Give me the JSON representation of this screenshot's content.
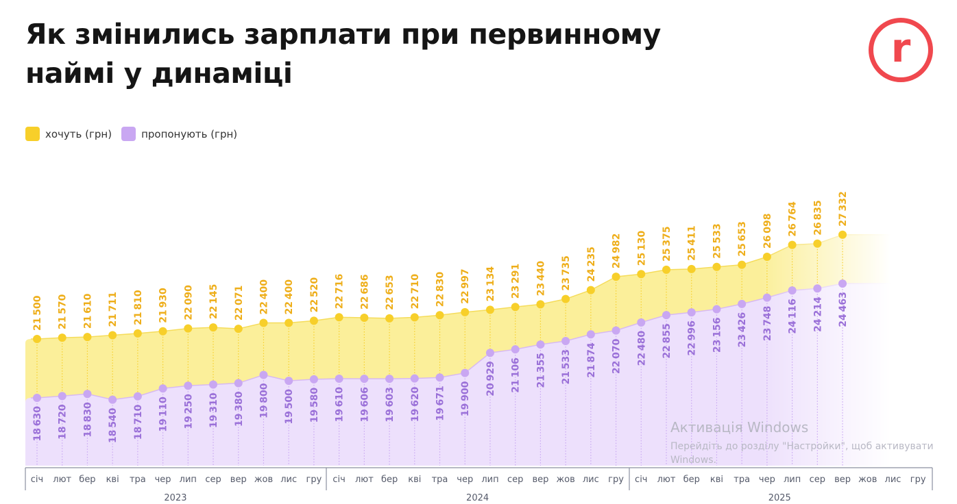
{
  "header": {
    "title_line1": "Як змінились зарплати при первинному",
    "title_line2": "наймі у динаміці",
    "logo_letter": "r"
  },
  "watermark": {
    "title": "Активація Windows",
    "text": "Перейдіть до розділу \"Настройки\", щоб активувати Windows."
  },
  "colors": {
    "want": "#f7cf2a",
    "want_fill": "#fbef9a",
    "want_label": "#eeae1a",
    "offer": "#c9a7f2",
    "offer_fill": "#ede0fc",
    "offer_label": "#9a70d8",
    "logo": "#f0484e"
  },
  "chart_data": {
    "type": "area",
    "title": "Як змінились зарплати при первинному наймі у динаміці",
    "legend": [
      "хочуть (грн)",
      "пропонують (грн)"
    ],
    "legend_placement": "top-left",
    "months": [
      "січ",
      "лют",
      "бер",
      "кві",
      "тра",
      "чер",
      "лип",
      "сер",
      "вер",
      "жов",
      "лис",
      "гру"
    ],
    "years": [
      "2023",
      "2024",
      "2025"
    ],
    "series": [
      {
        "name": "хочуть (грн)",
        "values": [
          21500,
          21570,
          21610,
          21711,
          21810,
          21930,
          22090,
          22145,
          22071,
          22400,
          22400,
          22520,
          22716,
          22686,
          22653,
          22710,
          22830,
          22997,
          23134,
          23291,
          23440,
          23735,
          24235,
          24982,
          25130,
          25375,
          25411,
          25533,
          25653,
          26098,
          26764,
          26835,
          27332
        ]
      },
      {
        "name": "пропонують (грн)",
        "values": [
          18630,
          18720,
          18830,
          18540,
          18710,
          19110,
          19250,
          19310,
          19380,
          19800,
          19500,
          19580,
          19610,
          19606,
          19603,
          19620,
          19671,
          19900,
          20929,
          21106,
          21355,
          21533,
          21874,
          22070,
          22480,
          22855,
          22996,
          23156,
          23426,
          23748,
          24116,
          24214,
          24463
        ]
      }
    ]
  }
}
